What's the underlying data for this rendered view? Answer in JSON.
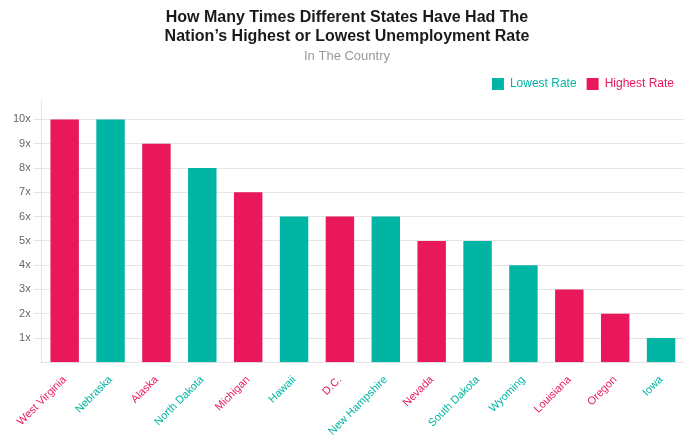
{
  "chart_data": {
    "type": "bar",
    "title": [
      "How Many Times Different States Have Had The",
      "Nation’s Highest or Lowest Unemployment Rate"
    ],
    "subtitle": "In The Country",
    "categories": [
      "West Virginia",
      "Nebraska",
      "Alaska",
      "North Dakota",
      "Michigan",
      "Hawaii",
      "D.C.",
      "New Hampshire",
      "Nevada",
      "South Dakota",
      "Wyoming",
      "Louisiana",
      "Oregon",
      "Iowa"
    ],
    "series": [
      {
        "name": "Lowest Rate",
        "color": "#00B5A3",
        "values": [
          null,
          10,
          null,
          8,
          null,
          6,
          null,
          6,
          null,
          5,
          4,
          null,
          null,
          1
        ]
      },
      {
        "name": "Highest Rate",
        "color": "#E8185A",
        "values": [
          10,
          null,
          9,
          null,
          7,
          null,
          6,
          null,
          5,
          null,
          null,
          3,
          2,
          null
        ]
      }
    ],
    "ylim": [
      0,
      10.8
    ],
    "yticks": [
      {
        "value": 1,
        "label": "1x"
      },
      {
        "value": 2,
        "label": "2x"
      },
      {
        "value": 3,
        "label": "3x"
      },
      {
        "value": 4,
        "label": "4x"
      },
      {
        "value": 5,
        "label": "5x"
      },
      {
        "value": 6,
        "label": "6x"
      },
      {
        "value": 7,
        "label": "7x"
      },
      {
        "value": 8,
        "label": "8x"
      },
      {
        "value": 9,
        "label": "9x"
      },
      {
        "value": 10,
        "label": "10x"
      }
    ],
    "grid": true,
    "legend": "upper right"
  }
}
